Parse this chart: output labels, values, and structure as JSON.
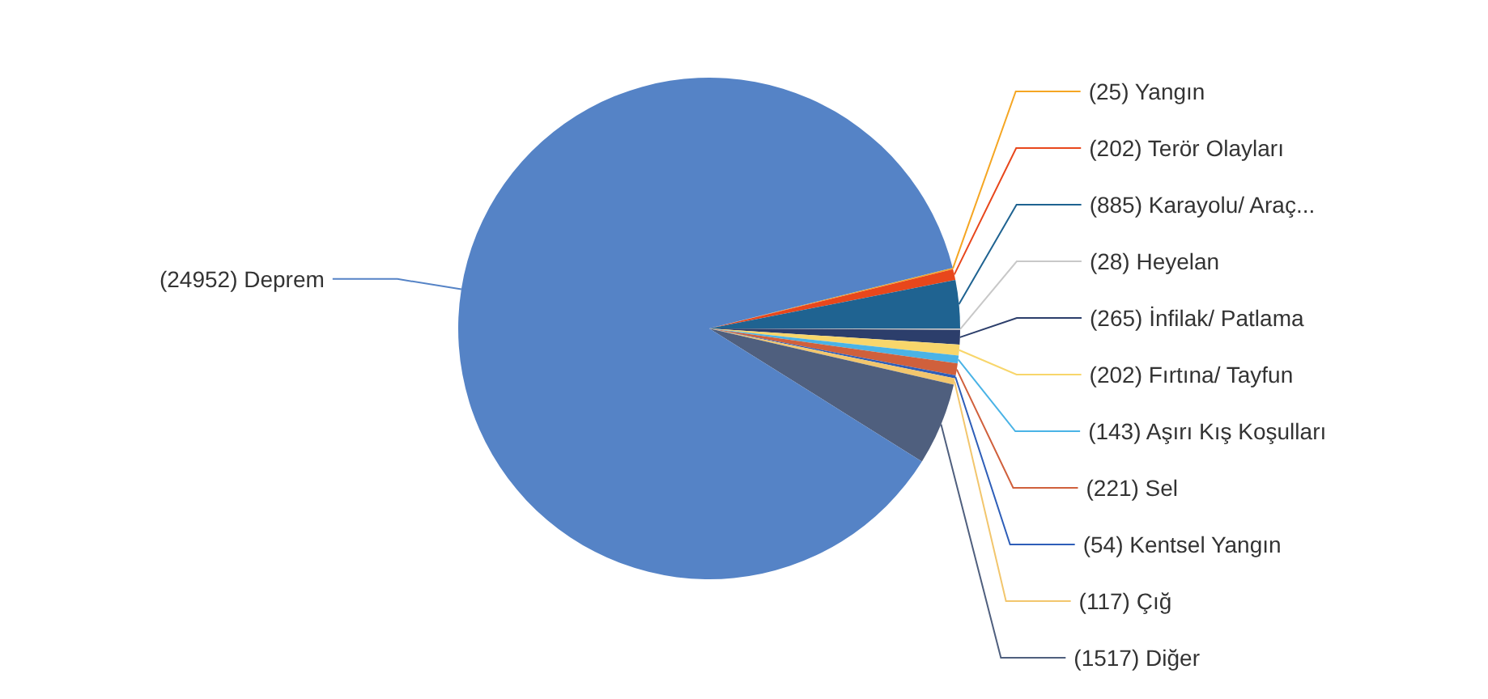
{
  "chart_data": {
    "type": "pie",
    "categories": [
      "Yangın",
      "Terör Olayları",
      "Karayolu/ Araç...",
      "Heyelan",
      "İnfilak/ Patlama",
      "Fırtına/ Tayfun",
      "Aşırı Kış Koşulları",
      "Sel",
      "Kentsel Yangın",
      "Çığ",
      "Diğer",
      "Deprem"
    ],
    "values": [
      25,
      202,
      885,
      28,
      265,
      202,
      143,
      221,
      54,
      117,
      1517,
      24952
    ],
    "colors": [
      "#f5a623",
      "#e8471c",
      "#1f6391",
      "#c8c8c8",
      "#2c3e6b",
      "#f8d66b",
      "#4ab3e6",
      "#d0603c",
      "#2e5eb8",
      "#f2c66d",
      "#4f5f7e",
      "#5583c6"
    ],
    "value_labels": [
      "(25)",
      "(202)",
      "(885)",
      "(28)",
      "(265)",
      "(202)",
      "(143)",
      "(221)",
      "(54)",
      "(117)",
      "(1517)",
      "(24952)"
    ],
    "legend": false
  }
}
